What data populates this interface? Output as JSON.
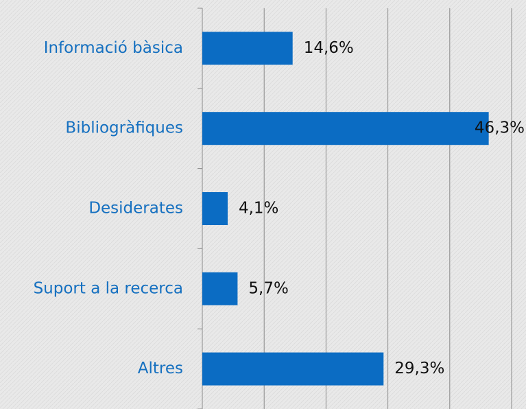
{
  "chart_data": {
    "type": "hbar",
    "categories": [
      "Informació bàsica",
      "Bibliogràfiques",
      "Desiderates",
      "Suport a la recerca",
      "Altres"
    ],
    "values": [
      14.6,
      46.3,
      4.1,
      5.7,
      29.3
    ],
    "value_labels": [
      "14,6%",
      "46,3%",
      "4,1%",
      "5,7%",
      "29,3%"
    ],
    "color": "#0b6cc3",
    "xlim": [
      0,
      50
    ],
    "xticks": [
      0,
      10,
      20,
      30,
      40,
      50
    ],
    "grid": true
  }
}
